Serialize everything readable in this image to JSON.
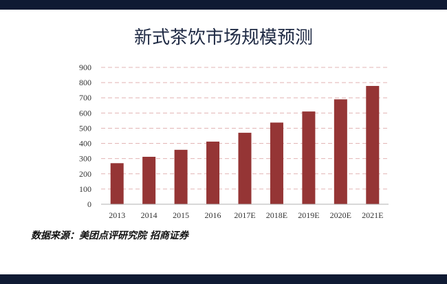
{
  "page": {
    "title": "新式茶饮市场规模预测",
    "source": "数据来源：美团点评研究院 招商证券"
  },
  "chart_data": {
    "type": "bar",
    "title": "新式茶饮市场规模预测",
    "xlabel": "",
    "ylabel": "",
    "categories": [
      "2013",
      "2014",
      "2015",
      "2016",
      "2017E",
      "2018E",
      "2019E",
      "2020E",
      "2021E"
    ],
    "values": [
      270,
      312,
      358,
      412,
      470,
      537,
      610,
      690,
      778
    ],
    "ylim": [
      0,
      900
    ],
    "yticks": [
      0,
      100,
      200,
      300,
      400,
      500,
      600,
      700,
      800,
      900
    ],
    "grid": true,
    "bar_color": "#953535",
    "grid_color": "#e2b4b4"
  }
}
